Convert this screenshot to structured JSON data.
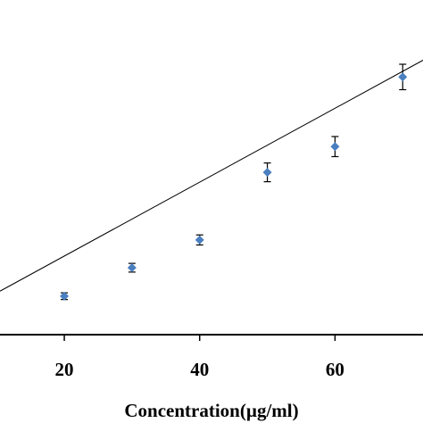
{
  "chart_data": {
    "type": "scatter",
    "title": "",
    "xlabel": "Concentration(µg/ml)",
    "ylabel": "",
    "xlim": [
      10.5,
      73
    ],
    "ylim": [
      0,
      1
    ],
    "x_ticks": [
      20,
      40,
      60
    ],
    "x_tick_labels": [
      "20",
      "40",
      "60"
    ],
    "grid": false,
    "legend": "none",
    "series": [
      {
        "x": [
          20,
          30,
          40,
          50,
          60,
          70
        ],
        "y": [
          0.115,
          0.2,
          0.283,
          0.485,
          0.562,
          0.77
        ],
        "error": [
          0.01,
          0.013,
          0.015,
          0.028,
          0.03,
          0.038
        ]
      }
    ],
    "trendline": {
      "x": [
        10.5,
        73
      ],
      "y": [
        0.13,
        0.82
      ]
    },
    "colors": {
      "marker": "#4a7fc0",
      "line": "#000000",
      "error_bar": "#000000",
      "axis": "#000000"
    }
  }
}
